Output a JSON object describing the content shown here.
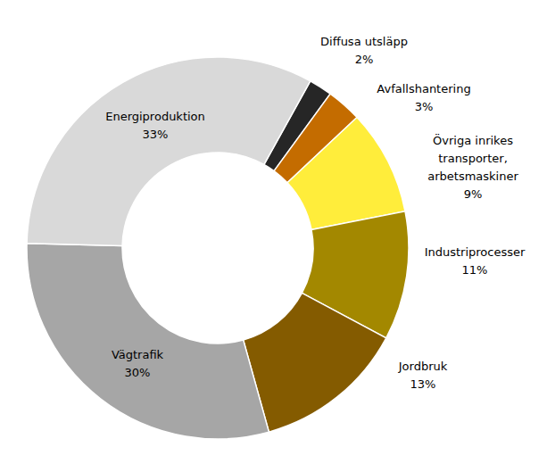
{
  "chart_data": {
    "type": "donut",
    "categories": [
      "Diffusa utsläpp",
      "Avfallshantering",
      "Övriga inrikes\ntransporter,\narbetsmaskiner",
      "Industriprocesser",
      "Jordbruk",
      "Vägtrafik",
      "Energiproduktion"
    ],
    "values": [
      2,
      3,
      9,
      11,
      13,
      30,
      33
    ],
    "value_labels": [
      "2%",
      "3%",
      "9%",
      "11%",
      "13%",
      "30%",
      "33%"
    ],
    "colors": [
      "#262626",
      "#c46c00",
      "#ffed3b",
      "#a38800",
      "#845b00",
      "#a6a6a6",
      "#d9d9d9"
    ],
    "data_labels": true
  }
}
